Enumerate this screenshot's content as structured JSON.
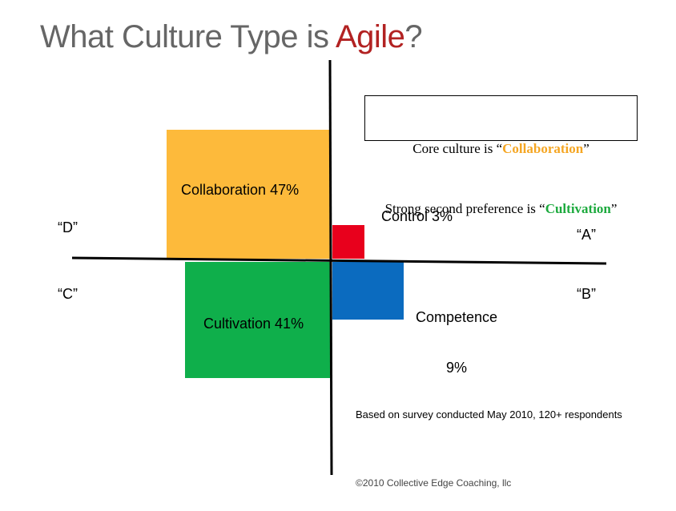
{
  "title": {
    "prefix": "What Culture Type is",
    "highlight": "Agile",
    "suffix": "?"
  },
  "callout": {
    "line1": {
      "prefix": "Core culture is “",
      "highlight": "Collaboration",
      "suffix": "”"
    },
    "line2": {
      "prefix": "Strong second preference is “",
      "highlight": "Cultivation",
      "suffix": "”"
    }
  },
  "quadrants": {
    "collaboration": "Collaboration 47%",
    "control": "Control 3%",
    "competence": [
      "Competence",
      "9%"
    ],
    "cultivation": "Cultivation 41%"
  },
  "corners": {
    "d": "“D”",
    "a": "“A”",
    "c": "“C”",
    "b": "“B”"
  },
  "note": "Based on survey conducted May 2010, 120+ respondents",
  "footer": "©2010 Collective Edge Coaching, llc"
}
